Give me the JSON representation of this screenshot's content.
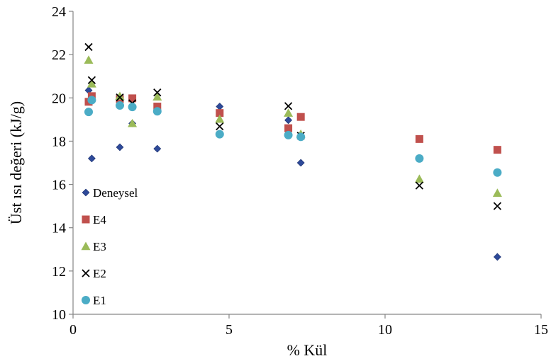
{
  "chart_data": {
    "type": "scatter",
    "title": "",
    "xlabel": "% Kül",
    "ylabel": "Üst ısı değeri (kJ/g)",
    "xlim": [
      0,
      15
    ],
    "ylim": [
      10,
      24
    ],
    "xticks": [
      0,
      5,
      10,
      15
    ],
    "yticks": [
      10,
      12,
      14,
      16,
      18,
      20,
      22,
      24
    ],
    "grid": false,
    "legend_placement": "left",
    "series": [
      {
        "name": "Deneysel",
        "marker": "diamond",
        "color": "#2e4a99",
        "points": [
          [
            0.5,
            20.35
          ],
          [
            0.6,
            17.2
          ],
          [
            1.5,
            17.72
          ],
          [
            1.9,
            18.82
          ],
          [
            2.7,
            17.65
          ],
          [
            4.7,
            19.6
          ],
          [
            6.9,
            18.97
          ],
          [
            7.3,
            17.0
          ],
          [
            13.6,
            12.65
          ]
        ]
      },
      {
        "name": "E4",
        "marker": "square",
        "color": "#c0504d",
        "points": [
          [
            0.5,
            19.82
          ],
          [
            0.6,
            20.08
          ],
          [
            1.5,
            19.95
          ],
          [
            1.9,
            19.98
          ],
          [
            2.7,
            19.6
          ],
          [
            4.7,
            19.3
          ],
          [
            6.9,
            18.6
          ],
          [
            7.3,
            19.12
          ],
          [
            11.1,
            18.1
          ],
          [
            13.6,
            17.6
          ]
        ]
      },
      {
        "name": "E3",
        "marker": "triangle",
        "color": "#9bbb59",
        "points": [
          [
            0.5,
            21.75
          ],
          [
            0.6,
            20.65
          ],
          [
            1.5,
            20.08
          ],
          [
            1.9,
            18.82
          ],
          [
            2.7,
            20.05
          ],
          [
            4.7,
            19.02
          ],
          [
            6.9,
            19.3
          ],
          [
            7.3,
            18.33
          ],
          [
            11.1,
            16.25
          ],
          [
            13.6,
            15.6
          ]
        ]
      },
      {
        "name": "E2",
        "marker": "x",
        "color": "#000000",
        "points": [
          [
            0.5,
            22.35
          ],
          [
            0.6,
            20.82
          ],
          [
            1.5,
            20.02
          ],
          [
            1.9,
            19.75
          ],
          [
            2.7,
            20.25
          ],
          [
            4.7,
            18.68
          ],
          [
            6.9,
            19.62
          ],
          [
            7.3,
            18.25
          ],
          [
            11.1,
            15.95
          ],
          [
            13.6,
            15.0
          ]
        ]
      },
      {
        "name": "E1",
        "marker": "circle",
        "color": "#4bacc6",
        "points": [
          [
            0.5,
            19.35
          ],
          [
            0.6,
            19.9
          ],
          [
            1.5,
            19.65
          ],
          [
            1.9,
            19.58
          ],
          [
            2.7,
            19.38
          ],
          [
            4.7,
            18.32
          ],
          [
            6.9,
            18.28
          ],
          [
            7.3,
            18.2
          ],
          [
            11.1,
            17.2
          ],
          [
            13.6,
            16.55
          ]
        ]
      }
    ]
  }
}
